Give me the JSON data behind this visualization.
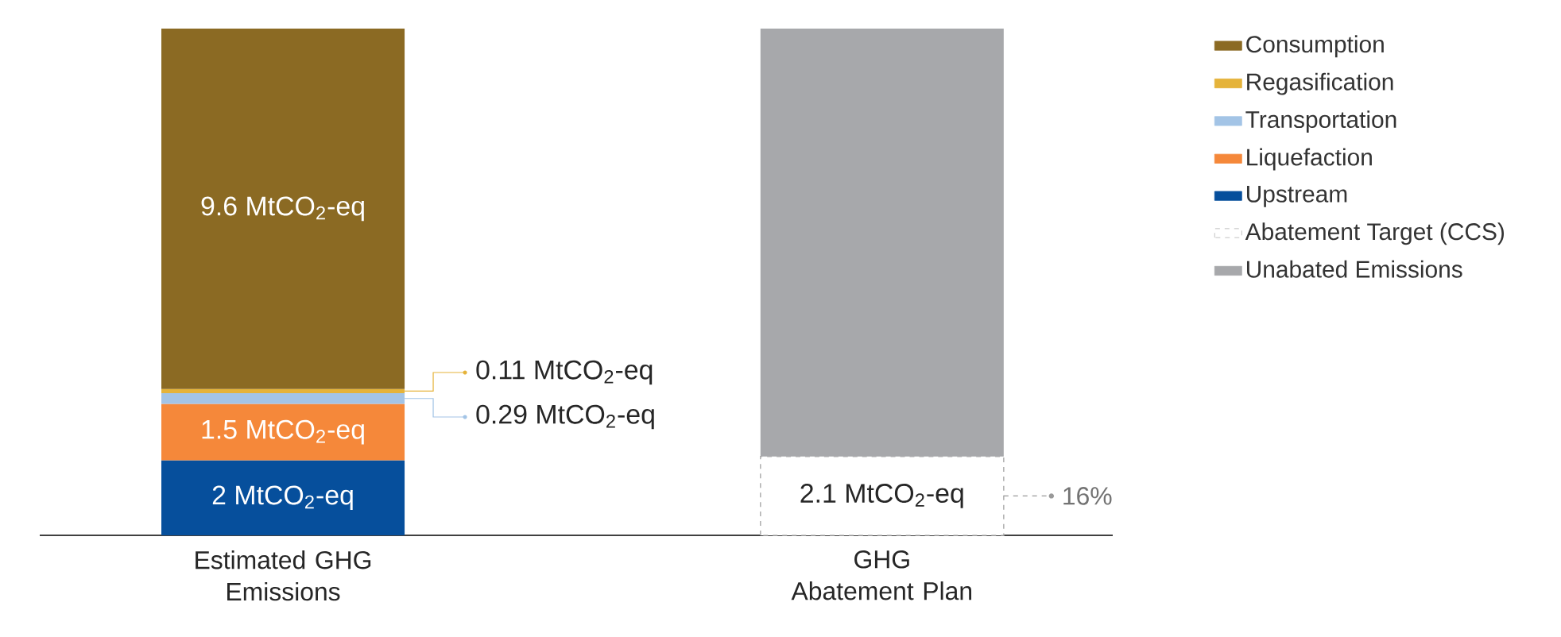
{
  "chart_data": {
    "type": "bar",
    "stacked": true,
    "categories": [
      "Estimated GHG Emissions",
      "GHG Abatement Plan"
    ],
    "series": [
      {
        "name": "Upstream",
        "color": "#064f9c",
        "values": [
          2,
          null
        ],
        "value_labels": [
          "2 MtCO$_{2}$-eq",
          null
        ]
      },
      {
        "name": "Liquefaction",
        "color": "#f5883a",
        "values": [
          1.5,
          null
        ],
        "value_labels": [
          "1.5 MtCO$_{2}$-eq",
          null
        ]
      },
      {
        "name": "Transportation",
        "color": "#a3c4e6",
        "values": [
          0.29,
          null
        ],
        "value_labels": [
          "0.29 MtCO$_{2}$-eq",
          null
        ]
      },
      {
        "name": "Regasification",
        "color": "#e5b33a",
        "values": [
          0.11,
          null
        ],
        "value_labels": [
          "0.11 MtCO$_{2}$-eq",
          null
        ]
      },
      {
        "name": "Consumption",
        "color": "#8b6a23",
        "values": [
          9.6,
          null
        ],
        "value_labels": [
          "9.6 MtCO$_{2}$-eq",
          null
        ]
      },
      {
        "name": "Abatement Target (CCS)",
        "color": "#b3b3b3",
        "line_style": "dashed",
        "values": [
          null,
          2.1
        ],
        "value_labels": [
          null,
          "2.1 MtCO$_{2}$-eq"
        ]
      },
      {
        "name": "Unabated Emissions",
        "color": "#a7a8ab",
        "values": [
          null,
          11.4
        ]
      }
    ],
    "annotations": [
      "16%"
    ],
    "legend": "right"
  }
}
